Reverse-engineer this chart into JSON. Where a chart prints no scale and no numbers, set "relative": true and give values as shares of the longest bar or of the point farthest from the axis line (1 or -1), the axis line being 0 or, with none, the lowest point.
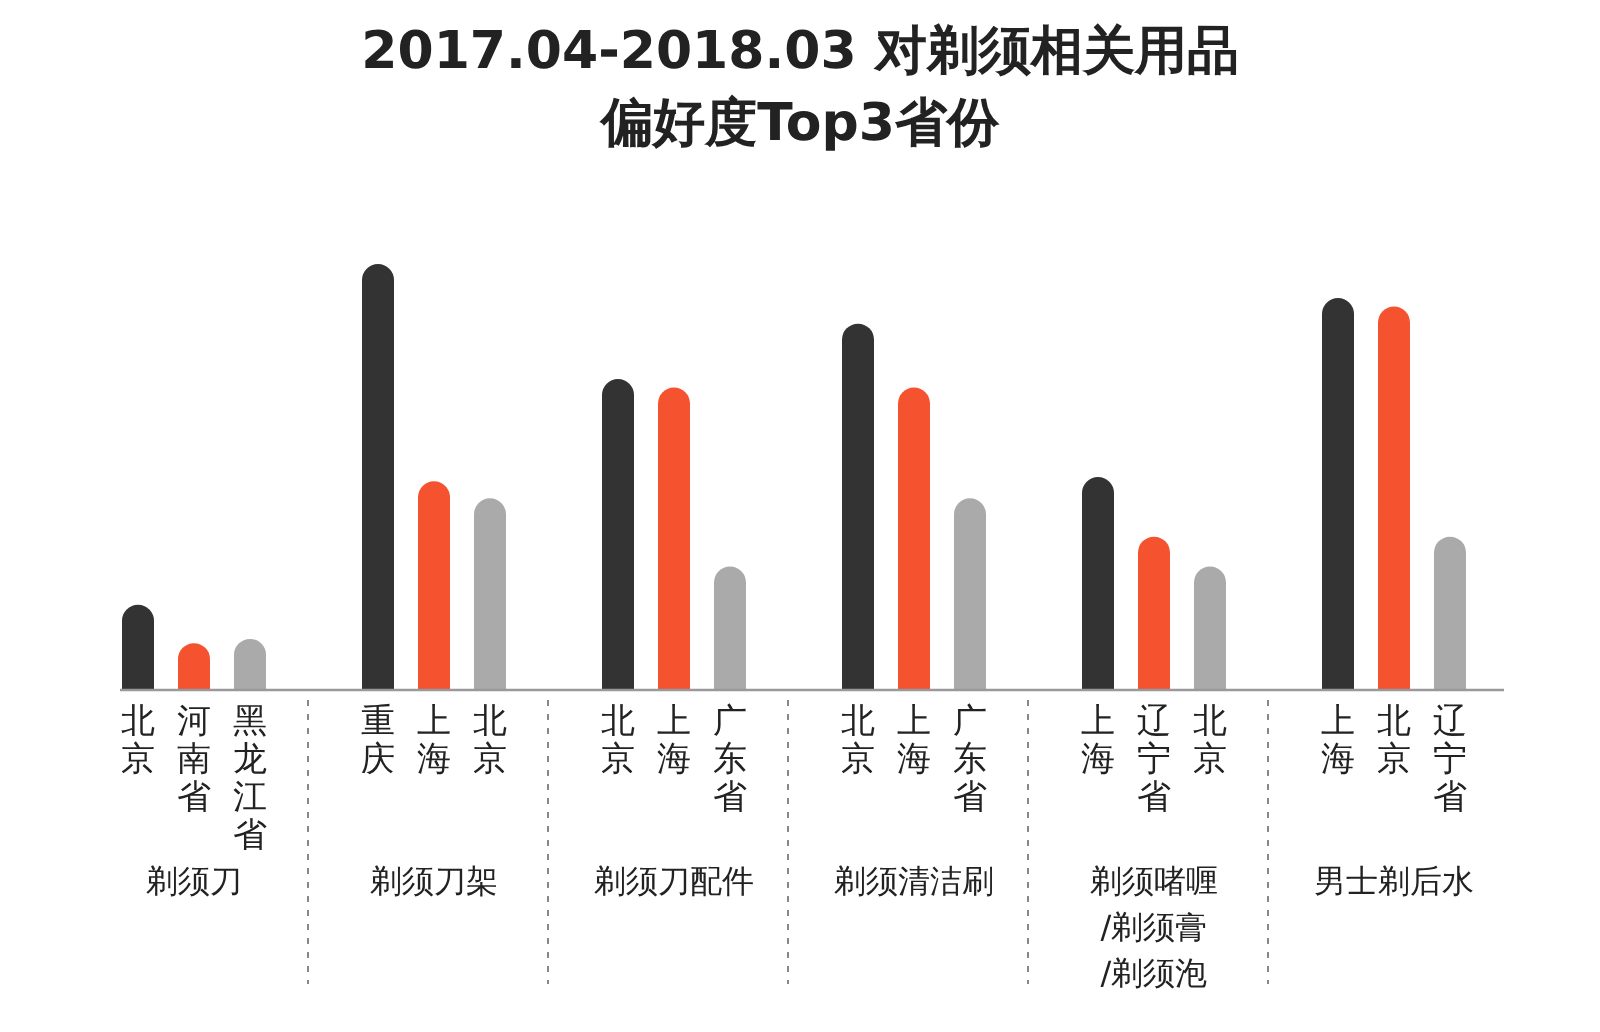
{
  "chart_data": {
    "type": "bar",
    "relative": true,
    "title": "2017.04-2018.03 对剃须相关用品",
    "subtitle": "偏好度Top3省份",
    "categories": [
      "北京",
      "河南省",
      "黑龙江省",
      "重庆",
      "上海",
      "北京",
      "北京",
      "上海",
      "广东省",
      "北京",
      "上海",
      "广东省",
      "上海",
      "辽宁省",
      "北京",
      "上海",
      "北京",
      "辽宁省"
    ],
    "values": [
      0.2,
      0.11,
      0.12,
      1,
      0.49,
      0.45,
      0.73,
      0.71,
      0.29,
      0.86,
      0.71,
      0.45,
      0.5,
      0.36,
      0.29,
      0.92,
      0.9,
      0.36
    ],
    "colors": [
      "#333333",
      "#f5532f",
      "#aaaaaa",
      "#333333",
      "#f5532f",
      "#aaaaaa",
      "#333333",
      "#f5532f",
      "#aaaaaa",
      "#333333",
      "#f5532f",
      "#aaaaaa",
      "#333333",
      "#f5532f",
      "#aaaaaa",
      "#333333",
      "#f5532f",
      "#aaaaaa"
    ],
    "annotations": [
      "剃须刀",
      "剃须刀架",
      "剃须刀配件",
      "剃须清洁刷",
      "剃须啫喱/剃须膏/剃须泡",
      "男士剃后水"
    ]
  }
}
